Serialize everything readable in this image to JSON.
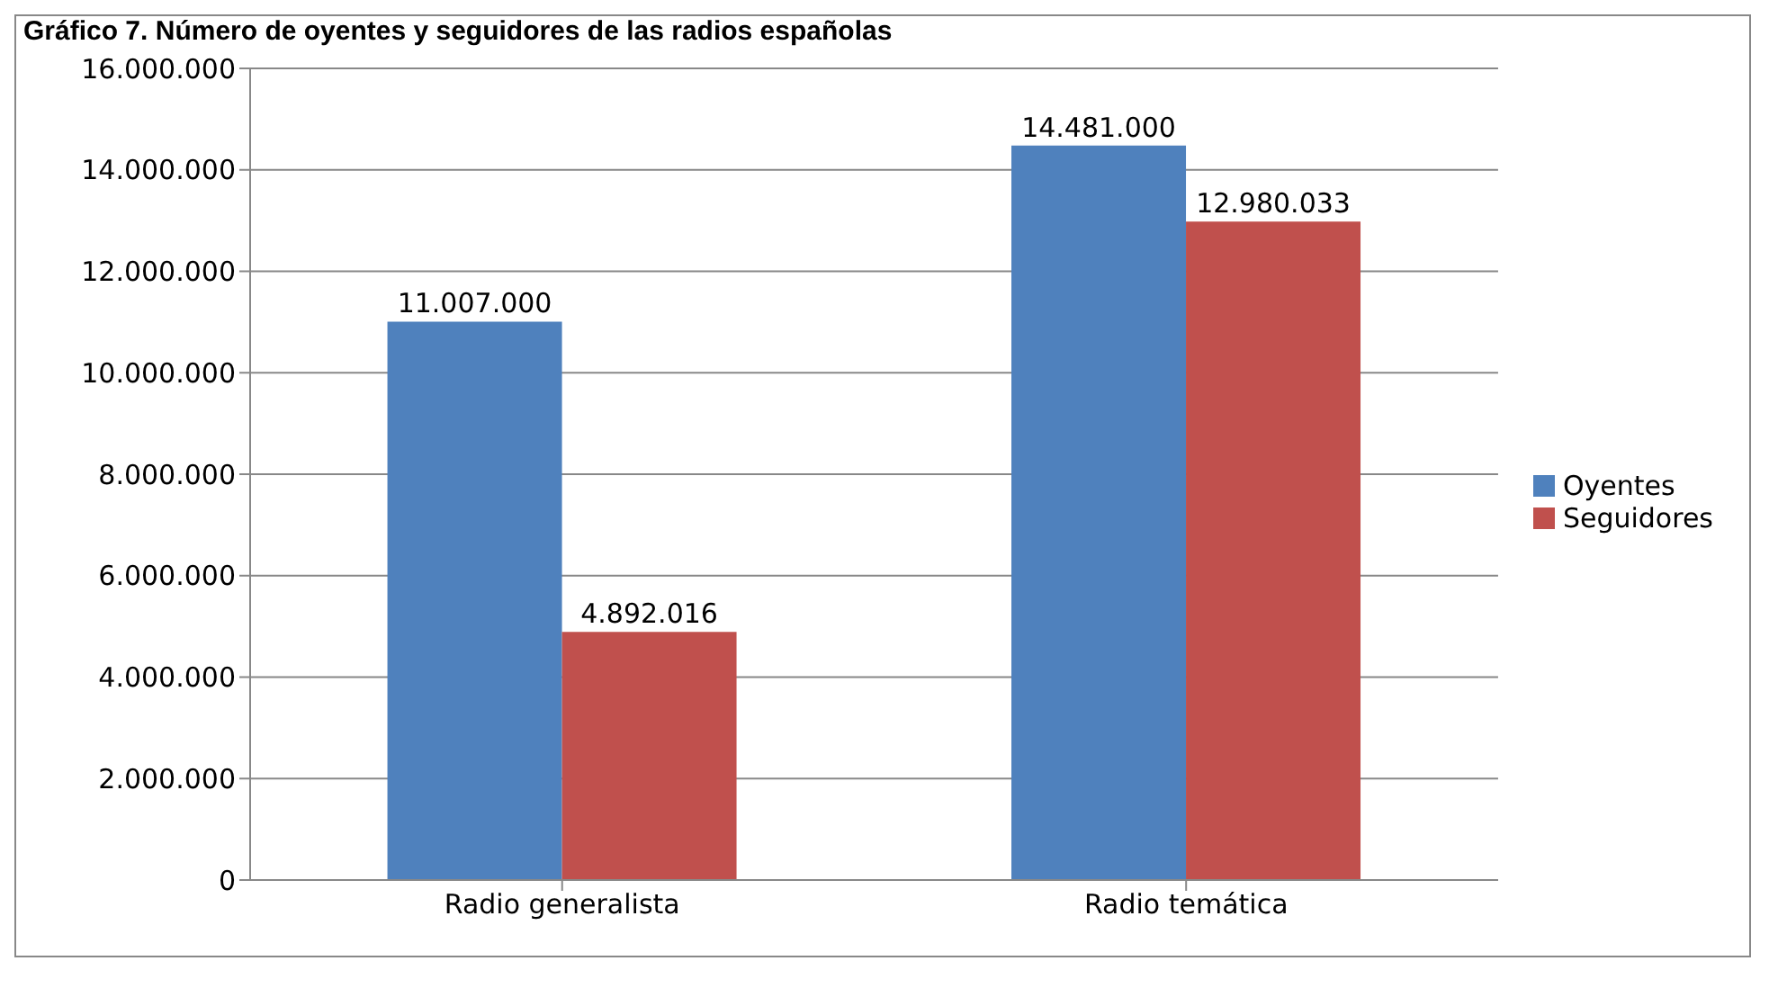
{
  "chart_data": {
    "type": "bar",
    "title": "Gráfico 7. Número de oyentes y seguidores de las radios españolas",
    "categories": [
      "Radio generalista",
      "Radio temática"
    ],
    "series": [
      {
        "name": "Oyentes",
        "color": "#4f81bd",
        "values": [
          11007000,
          14481000
        ],
        "value_labels": [
          "11.007.000",
          "14.481.000"
        ]
      },
      {
        "name": "Seguidores",
        "color": "#c0504d",
        "values": [
          4892016,
          12980033
        ],
        "value_labels": [
          "4.892.016",
          "12.980.033"
        ]
      }
    ],
    "ylim": [
      0,
      16000000
    ],
    "yticks": [
      0,
      {
        "value": 2000000,
        "label": "2.000.000"
      },
      {
        "value": 4000000,
        "label": "4.000.000"
      },
      {
        "value": 6000000,
        "label": "6.000.000"
      },
      {
        "value": 8000000,
        "label": "8.000.000"
      },
      {
        "value": 10000000,
        "label": "10.000.000"
      },
      {
        "value": 12000000,
        "label": "12.000.000"
      },
      {
        "value": 14000000,
        "label": "14.000.000"
      },
      {
        "value": 16000000,
        "label": "16.000.000"
      }
    ],
    "grid": "y",
    "legend": "right"
  }
}
